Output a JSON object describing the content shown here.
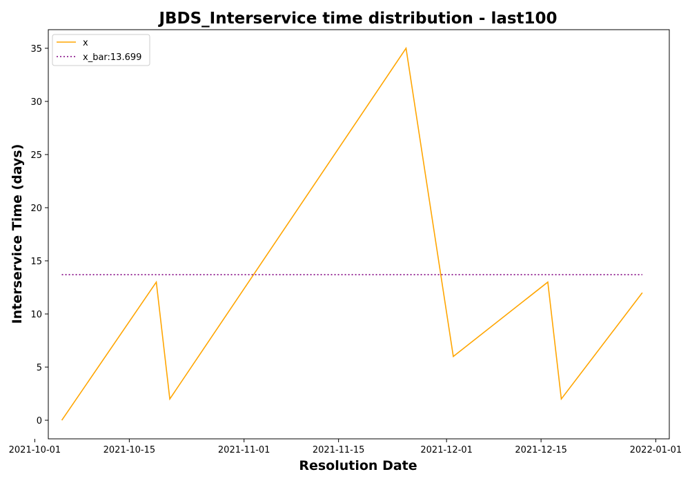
{
  "chart_data": {
    "type": "line",
    "title": "JBDS_Interservice time distribution - last100",
    "xlabel": "Resolution Date",
    "ylabel": "Interservice Time (days)",
    "x_type": "date",
    "xlim": [
      "2021-10-03",
      "2022-01-03"
    ],
    "ylim": [
      -1.75,
      36.75
    ],
    "x_ticks": [
      "2021-10-01",
      "2021-10-15",
      "2021-11-01",
      "2021-11-15",
      "2021-12-01",
      "2021-12-15",
      "2022-01-01"
    ],
    "y_ticks": [
      0,
      5,
      10,
      15,
      20,
      25,
      30,
      35
    ],
    "grid": false,
    "legend_position": "top-left",
    "series": [
      {
        "name": "x",
        "color": "#ffa500",
        "style": "solid",
        "x": [
          "2021-10-05",
          "2021-10-19",
          "2021-10-21",
          "2021-11-25",
          "2021-12-02",
          "2021-12-16",
          "2021-12-18",
          "2021-12-30"
        ],
        "values": [
          0,
          13,
          2,
          35,
          6,
          13,
          2,
          12
        ]
      },
      {
        "name": "x_bar:13.699",
        "color": "#800080",
        "style": "dotted",
        "x": [
          "2021-10-05",
          "2021-12-30"
        ],
        "values": [
          13.699,
          13.699
        ]
      }
    ]
  }
}
